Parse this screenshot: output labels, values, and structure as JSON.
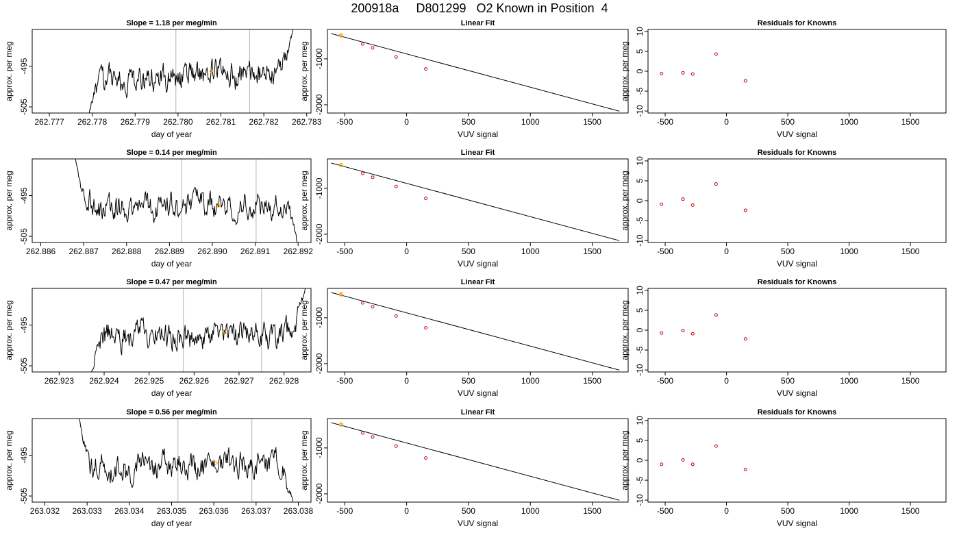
{
  "figure": {
    "title": "200918a     D801299   O2 Known in Position  4",
    "colors": {
      "trace": "#000000",
      "marker": "#ffa500",
      "knowns": "#cc0000",
      "vline": "#bebebe",
      "frame": "#000000"
    }
  },
  "chart_data": [
    {
      "type": "line",
      "title": "Slope =  1.18  per meg/min",
      "xlabel": "day of year",
      "ylabel": "approx. per meg",
      "xlim": [
        262.7766,
        262.7831
      ],
      "ylim": [
        -506.5,
        -486
      ],
      "xticks": [
        262.777,
        262.778,
        262.779,
        262.78,
        262.781,
        262.782,
        262.783
      ],
      "xtick_labels": [
        "262.777",
        "262.778",
        "262.779",
        "262.780",
        "262.781",
        "262.782",
        "262.783"
      ],
      "yticks": [
        -495,
        -505
      ],
      "ytick_labels": [
        "-495",
        "-505"
      ],
      "vlines": [
        262.77995,
        262.78167
      ],
      "marker": {
        "x": 262.78078,
        "y": -496.2
      },
      "x_start": 262.7779,
      "x_end": 262.7827,
      "y_start": -507.5,
      "y_end": -484.5,
      "y_base": -497.5,
      "slope": 1.18
    },
    {
      "type": "scatter_with_fit",
      "title": "Linear Fit",
      "xlabel": "VUV signal",
      "ylabel": "approx. per meg",
      "xlim": [
        -640,
        1790
      ],
      "ylim": [
        -2180,
        -360
      ],
      "xticks": [
        -500,
        0,
        500,
        1000,
        1500
      ],
      "xtick_labels": [
        "-500",
        "0",
        "500",
        "1000",
        "1500"
      ],
      "yticks": [
        -1000,
        -2000
      ],
      "ytick_labels": [
        "-1000",
        "-2000"
      ],
      "points": [
        [
          -530,
          -490
        ],
        [
          -355,
          -675
        ],
        [
          -275,
          -760
        ],
        [
          -85,
          -960
        ],
        [
          155,
          -1220
        ]
      ],
      "highlight": [
        -530,
        -490
      ],
      "fit": {
        "x": [
          -610,
          1720
        ],
        "y": [
          -450,
          -2140
        ]
      }
    },
    {
      "type": "scatter",
      "title": "Residuals for Knowns",
      "xlabel": "VUV signal",
      "ylabel": "approx. per meg",
      "xlim": [
        -640,
        1790
      ],
      "ylim": [
        -10.5,
        10.5
      ],
      "xticks": [
        -500,
        0,
        500,
        1000,
        1500
      ],
      "xtick_labels": [
        "-500",
        "0",
        "500",
        "1000",
        "1500"
      ],
      "yticks": [
        -10,
        -5,
        0,
        5,
        10
      ],
      "ytick_labels": [
        "-10",
        "-5",
        "0",
        "5",
        "10"
      ],
      "points": [
        [
          -530,
          -0.6
        ],
        [
          -355,
          -0.4
        ],
        [
          -275,
          -0.7
        ],
        [
          -85,
          4.3
        ],
        [
          155,
          -2.4
        ]
      ]
    },
    {
      "type": "line",
      "title": "Slope =  0.14  per meg/min",
      "xlabel": "day of year",
      "ylabel": "approx. per meg",
      "xlim": [
        262.8858,
        262.8923
      ],
      "ylim": [
        -506.5,
        -486
      ],
      "xticks": [
        262.886,
        262.887,
        262.888,
        262.889,
        262.89,
        262.891,
        262.892
      ],
      "xtick_labels": [
        "262.886",
        "262.887",
        "262.888",
        "262.889",
        "262.890",
        "262.891",
        "262.892"
      ],
      "yticks": [
        -495,
        -505
      ],
      "ytick_labels": [
        "-495",
        "-505"
      ],
      "vlines": [
        262.88928,
        262.89102
      ],
      "marker": {
        "x": 262.89015,
        "y": -497.5
      },
      "x_start": 262.8868,
      "x_end": 262.892,
      "y_start": -485.5,
      "y_end": -508,
      "y_base": -497.5,
      "slope": 0.14
    },
    {
      "type": "scatter_with_fit",
      "title": "Linear Fit",
      "xlabel": "VUV signal",
      "ylabel": "approx. per meg",
      "xlim": [
        -640,
        1790
      ],
      "ylim": [
        -2180,
        -360
      ],
      "xticks": [
        -500,
        0,
        500,
        1000,
        1500
      ],
      "xtick_labels": [
        "-500",
        "0",
        "500",
        "1000",
        "1500"
      ],
      "yticks": [
        -1000,
        -2000
      ],
      "ytick_labels": [
        "-1000",
        "-2000"
      ],
      "points": [
        [
          -530,
          -490
        ],
        [
          -355,
          -675
        ],
        [
          -275,
          -760
        ],
        [
          -85,
          -960
        ],
        [
          155,
          -1220
        ]
      ],
      "highlight": [
        -530,
        -490
      ],
      "fit": {
        "x": [
          -610,
          1720
        ],
        "y": [
          -450,
          -2140
        ]
      }
    },
    {
      "type": "scatter",
      "title": "Residuals for Knowns",
      "xlabel": "VUV signal",
      "ylabel": "approx. per meg",
      "xlim": [
        -640,
        1790
      ],
      "ylim": [
        -10.5,
        10.5
      ],
      "xticks": [
        -500,
        0,
        500,
        1000,
        1500
      ],
      "xtick_labels": [
        "-500",
        "0",
        "500",
        "1000",
        "1500"
      ],
      "yticks": [
        -10,
        -5,
        0,
        5,
        10
      ],
      "ytick_labels": [
        "-10",
        "-5",
        "0",
        "5",
        "10"
      ],
      "points": [
        [
          -530,
          -0.9
        ],
        [
          -355,
          0.4
        ],
        [
          -275,
          -1.1
        ],
        [
          -85,
          4.2
        ],
        [
          155,
          -2.4
        ]
      ]
    },
    {
      "type": "line",
      "title": "Slope =  0.47  per meg/min",
      "xlabel": "day of year",
      "ylabel": "approx. per meg",
      "xlim": [
        262.9224,
        262.9286
      ],
      "ylim": [
        -506.5,
        -486
      ],
      "xticks": [
        262.923,
        262.924,
        262.925,
        262.926,
        262.927,
        262.928
      ],
      "xtick_labels": [
        "262.923",
        "262.924",
        "262.925",
        "262.926",
        "262.927",
        "262.928"
      ],
      "yticks": [
        -495,
        -505
      ],
      "ytick_labels": [
        "-495",
        "-505"
      ],
      "vlines": [
        262.92576,
        262.9275
      ],
      "marker": {
        "x": 262.92667,
        "y": -496.5
      },
      "x_start": 262.9237,
      "x_end": 262.9285,
      "y_start": -507.5,
      "y_end": -484.5,
      "y_base": -497.5,
      "slope": 0.47
    },
    {
      "type": "scatter_with_fit",
      "title": "Linear Fit",
      "xlabel": "VUV signal",
      "ylabel": "approx. per meg",
      "xlim": [
        -640,
        1790
      ],
      "ylim": [
        -2180,
        -360
      ],
      "xticks": [
        -500,
        0,
        500,
        1000,
        1500
      ],
      "xtick_labels": [
        "-500",
        "0",
        "500",
        "1000",
        "1500"
      ],
      "yticks": [
        -1000,
        -2000
      ],
      "ytick_labels": [
        "-1000",
        "-2000"
      ],
      "points": [
        [
          -530,
          -490
        ],
        [
          -355,
          -675
        ],
        [
          -275,
          -760
        ],
        [
          -85,
          -960
        ],
        [
          155,
          -1220
        ]
      ],
      "highlight": [
        -530,
        -490
      ],
      "fit": {
        "x": [
          -610,
          1720
        ],
        "y": [
          -450,
          -2140
        ]
      }
    },
    {
      "type": "scatter",
      "title": "Residuals for Knowns",
      "xlabel": "VUV signal",
      "ylabel": "approx. per meg",
      "xlim": [
        -640,
        1790
      ],
      "ylim": [
        -10.5,
        10.5
      ],
      "xticks": [
        -500,
        0,
        500,
        1000,
        1500
      ],
      "xtick_labels": [
        "-500",
        "0",
        "500",
        "1000",
        "1500"
      ],
      "yticks": [
        -10,
        -5,
        0,
        5,
        10
      ],
      "ytick_labels": [
        "-10",
        "-5",
        "0",
        "5",
        "10"
      ],
      "points": [
        [
          -530,
          -0.7
        ],
        [
          -355,
          -0.1
        ],
        [
          -275,
          -0.9
        ],
        [
          -85,
          3.8
        ],
        [
          155,
          -2.2
        ]
      ]
    },
    {
      "type": "line",
      "title": "Slope =  0.56  per meg/min",
      "xlabel": "day of year",
      "ylabel": "approx. per meg",
      "xlim": [
        263.0317,
        263.0383
      ],
      "ylim": [
        -506.5,
        -486
      ],
      "xticks": [
        263.032,
        263.033,
        263.034,
        263.035,
        263.036,
        263.037,
        263.038
      ],
      "xtick_labels": [
        "263.032",
        "263.033",
        "263.034",
        "263.035",
        "263.036",
        "263.037",
        "263.038"
      ],
      "yticks": [
        -495,
        -505
      ],
      "ytick_labels": [
        "-495",
        "-505"
      ],
      "vlines": [
        263.03515,
        263.0369
      ],
      "marker": {
        "x": 263.03605,
        "y": -496.9
      },
      "x_start": 263.0328,
      "x_end": 263.0379,
      "y_start": -485.5,
      "y_end": -508,
      "y_base": -497.5,
      "slope": 0.56
    },
    {
      "type": "scatter_with_fit",
      "title": "Linear Fit",
      "xlabel": "VUV signal",
      "ylabel": "approx. per meg",
      "xlim": [
        -640,
        1790
      ],
      "ylim": [
        -2180,
        -360
      ],
      "xticks": [
        -500,
        0,
        500,
        1000,
        1500
      ],
      "xtick_labels": [
        "-500",
        "0",
        "500",
        "1000",
        "1500"
      ],
      "yticks": [
        -1000,
        -2000
      ],
      "ytick_labels": [
        "-1000",
        "-2000"
      ],
      "points": [
        [
          -530,
          -490
        ],
        [
          -355,
          -675
        ],
        [
          -275,
          -760
        ],
        [
          -85,
          -960
        ],
        [
          155,
          -1220
        ]
      ],
      "highlight": [
        -530,
        -490
      ],
      "fit": {
        "x": [
          -610,
          1720
        ],
        "y": [
          -450,
          -2140
        ]
      }
    },
    {
      "type": "scatter",
      "title": "Residuals for Knowns",
      "xlabel": "VUV signal",
      "ylabel": "approx. per meg",
      "xlim": [
        -640,
        1790
      ],
      "ylim": [
        -10.5,
        10.5
      ],
      "xticks": [
        -500,
        0,
        500,
        1000,
        1500
      ],
      "xtick_labels": [
        "-500",
        "0",
        "500",
        "1000",
        "1500"
      ],
      "yticks": [
        -10,
        -5,
        0,
        5,
        10
      ],
      "ytick_labels": [
        "-10",
        "-5",
        "0",
        "5",
        "10"
      ],
      "points": [
        [
          -530,
          -1.0
        ],
        [
          -355,
          0.1
        ],
        [
          -275,
          -1.0
        ],
        [
          -85,
          3.6
        ],
        [
          155,
          -2.3
        ]
      ]
    }
  ]
}
